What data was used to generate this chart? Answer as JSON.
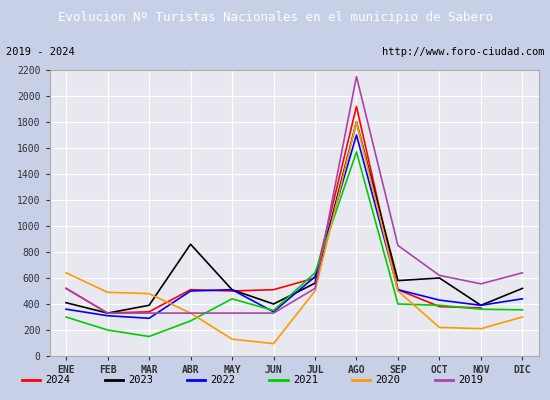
{
  "title": "Evolucion Nº Turistas Nacionales en el municipio de Sabero",
  "subtitle_left": "2019 - 2024",
  "subtitle_right": "http://www.foro-ciudad.com",
  "months": [
    "ENE",
    "FEB",
    "MAR",
    "ABR",
    "MAY",
    "JUN",
    "JUL",
    "AGO",
    "SEP",
    "OCT",
    "NOV",
    "DIC"
  ],
  "series": {
    "2024": [
      520,
      330,
      340,
      510,
      500,
      510,
      600,
      1920,
      510,
      380,
      370,
      null
    ],
    "2023": [
      410,
      330,
      390,
      860,
      510,
      400,
      560,
      1800,
      580,
      600,
      390,
      520
    ],
    "2022": [
      360,
      310,
      290,
      500,
      510,
      340,
      610,
      1700,
      510,
      430,
      390,
      440
    ],
    "2021": [
      300,
      200,
      150,
      270,
      440,
      350,
      640,
      1570,
      400,
      390,
      360,
      355
    ],
    "2020": [
      640,
      490,
      480,
      330,
      130,
      95,
      500,
      1800,
      500,
      220,
      210,
      300
    ],
    "2019": [
      520,
      330,
      330,
      330,
      330,
      330,
      520,
      2150,
      850,
      620,
      555,
      640
    ]
  },
  "colors": {
    "2024": "#ff0000",
    "2023": "#000000",
    "2022": "#0000ff",
    "2021": "#00cc00",
    "2020": "#ff9900",
    "2019": "#aa44aa"
  },
  "ylim": [
    0,
    2200
  ],
  "yticks": [
    0,
    200,
    400,
    600,
    800,
    1000,
    1200,
    1400,
    1600,
    1800,
    2000,
    2200
  ],
  "title_bg": "#4472c4",
  "title_color": "#ffffff",
  "plot_bg": "#e8e8f0",
  "outer_bg": "#c8d0e8",
  "grid_color": "#ffffff",
  "legend_years": [
    "2024",
    "2023",
    "2022",
    "2021",
    "2020",
    "2019"
  ]
}
